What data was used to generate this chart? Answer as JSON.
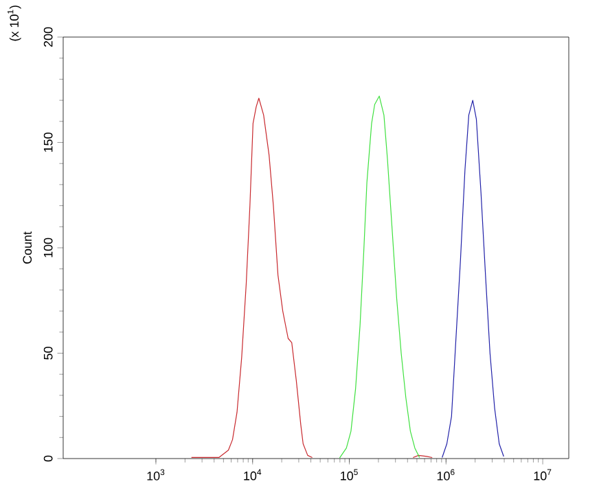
{
  "chart_data": {
    "type": "line",
    "ylabel": "Count",
    "annotations": [
      "(x 10$^{1}$)"
    ],
    "log": "x",
    "grid": false,
    "marker": "none",
    "line_style": "solid",
    "xlim": [
      110,
      18600000
    ],
    "ylim": [
      0,
      200
    ],
    "xticks": [
      {
        "value": 1000,
        "label": "10$^{3}$"
      },
      {
        "value": 10000,
        "label": "10$^{4}$"
      },
      {
        "value": 100000,
        "label": "10$^{5}$"
      },
      {
        "value": 1000000,
        "label": "10$^{6}$"
      },
      {
        "value": 10000000,
        "label": "10$^{7}$"
      }
    ],
    "yticks": [
      0,
      50,
      100,
      150,
      200
    ],
    "series": [
      {
        "color": "#c8282d",
        "x": [
          2330,
          3230,
          4480,
          5620,
          6200,
          6900,
          7710,
          8590,
          9380,
          10100,
          10900,
          11600,
          13000,
          14800,
          16400,
          18300,
          20500,
          23300,
          25400,
          28300,
          31500,
          33300,
          37100,
          41400
        ],
        "values": [
          0.5,
          0.5,
          0.5,
          4,
          9,
          22,
          48,
          83,
          120,
          159,
          167,
          171,
          163,
          144,
          120,
          87,
          70,
          57,
          55,
          37,
          16,
          7,
          1.5,
          0.5
        ]
      },
      {
        "color": "#c8282d",
        "x": [
          456000,
          520000,
          632000,
          720000
        ],
        "values": [
          0.5,
          1.5,
          1,
          0.5
        ]
      },
      {
        "color": "#3ee03e",
        "x": [
          79400,
          93300,
          104000,
          116000,
          129000,
          141000,
          152000,
          170000,
          183000,
          204000,
          228000,
          248000,
          277000,
          309000,
          344000,
          384000,
          428000,
          476000,
          532000
        ],
        "values": [
          0.3,
          5,
          13,
          33,
          63,
          98,
          131,
          159,
          168,
          172,
          163,
          142,
          109,
          76,
          50,
          29,
          13,
          5,
          0.5
        ]
      },
      {
        "color": "#2020a8",
        "x": [
          912000,
          1020000,
          1140000,
          1260000,
          1410000,
          1570000,
          1720000,
          1890000,
          2060000,
          2300000,
          2560000,
          2850000,
          3180000,
          3550000,
          3950000
        ],
        "values": [
          0.5,
          7,
          20,
          55,
          94,
          137,
          163,
          170,
          161,
          126,
          87,
          50,
          24,
          7,
          1
        ]
      }
    ]
  }
}
